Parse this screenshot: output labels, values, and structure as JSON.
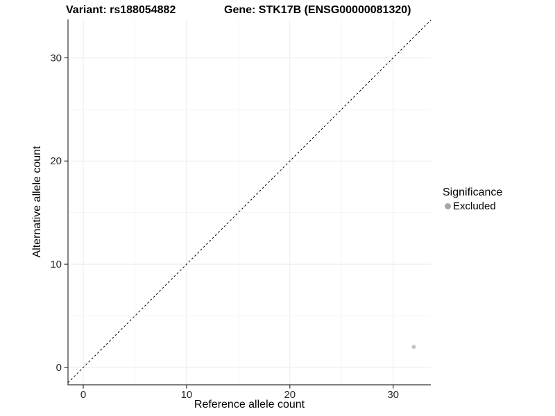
{
  "titles": {
    "left": "Variant: rs188054882",
    "right": "Gene: STK17B (ENSG00000081320)"
  },
  "chart_data": {
    "type": "scatter",
    "title": "Variant: rs188054882 / Gene: STK17B (ENSG00000081320)",
    "xlabel": "Reference allele count",
    "ylabel": "Alternative allele count",
    "xlim": [
      -1.48,
      33.65
    ],
    "ylim": [
      -1.68,
      33.72
    ],
    "x_ticks": [
      0,
      10,
      20,
      30
    ],
    "y_ticks": [
      0,
      10,
      20,
      30
    ],
    "x_minor_gridlines": [
      5,
      15,
      25
    ],
    "y_minor_gridlines": [
      5,
      15,
      25
    ],
    "grid": "major and minor, light gray",
    "legend_position": "right-center",
    "series": [
      {
        "name": "Excluded",
        "color": "#c3c3c3",
        "points": [
          {
            "x": 32,
            "y": 2
          }
        ]
      }
    ],
    "identity_line": {
      "equation": "y = x",
      "style": "dashed",
      "color": "#000000"
    }
  },
  "legend": {
    "title": "Significance",
    "items": [
      {
        "label": "Excluded",
        "swatch_color": "#a6a6a6"
      }
    ]
  },
  "style": {
    "background": "#ffffff",
    "axis_line_color": "#333333",
    "tick_color": "#333333",
    "tick_label_color": "#262626",
    "grid_major_color": "#ebebeb",
    "grid_minor_color": "#f5f5f5"
  }
}
